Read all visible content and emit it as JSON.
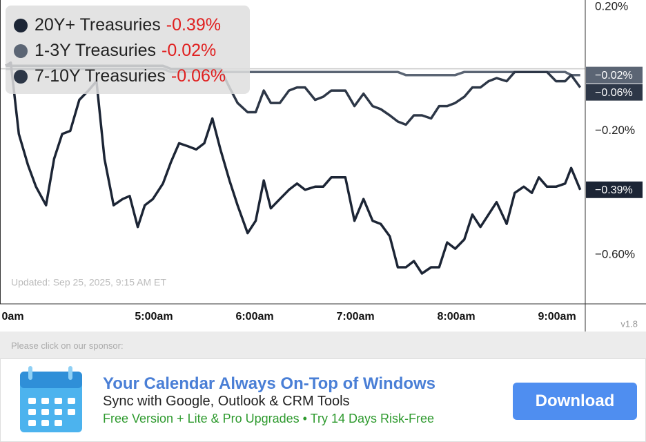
{
  "chart_data": {
    "type": "line",
    "x": [
      3.53,
      3.58,
      3.66,
      3.75,
      3.83,
      3.93,
      4.01,
      4.09,
      4.17,
      4.26,
      4.35,
      4.43,
      4.51,
      4.6,
      4.69,
      4.76,
      4.84,
      4.91,
      4.99,
      5.09,
      5.17,
      5.25,
      5.34,
      5.42,
      5.5,
      5.58,
      5.66,
      5.75,
      5.83,
      5.93,
      6.01,
      6.09,
      6.16,
      6.25,
      6.34,
      6.42,
      6.5,
      6.6,
      6.68,
      6.76,
      6.9,
      6.99,
      7.08,
      7.17,
      7.25,
      7.34,
      7.42,
      7.5,
      7.58,
      7.66,
      7.75,
      7.83,
      7.91,
      7.99,
      8.08,
      8.16,
      8.24,
      8.32,
      8.4,
      8.5,
      8.58,
      8.67,
      8.75,
      8.82,
      8.9,
      8.99,
      9.08,
      9.14,
      9.23
    ],
    "xlim": [
      3.473,
      9.28
    ],
    "xticks": [
      {
        "value": 3.6,
        "label": "0am"
      },
      {
        "value": 5,
        "label": "5:00am"
      },
      {
        "value": 6,
        "label": "6:00am"
      },
      {
        "value": 7,
        "label": "7:00am"
      },
      {
        "value": 8,
        "label": "8:00am"
      },
      {
        "value": 9,
        "label": "9:00am"
      }
    ],
    "ylim": [
      -0.758,
      0.222
    ],
    "yticks": [
      {
        "value": 0.2,
        "label": "0.20%"
      },
      {
        "value": -0.2,
        "label": "−0.20%"
      },
      {
        "value": -0.6,
        "label": "−0.60%"
      }
    ],
    "annotation": "Updated: Sep 25, 2025, 9:15 AM ET",
    "version": "v1.8",
    "series": [
      {
        "name": "20Y+ Treasuries",
        "change": "-0.39%",
        "end_label": "−0.39%",
        "color": "#1c2535",
        "label_bg": "#1c2535",
        "values": [
          0.01,
          0.02,
          -0.21,
          -0.31,
          -0.38,
          -0.44,
          -0.29,
          -0.21,
          -0.2,
          -0.1,
          -0.07,
          -0.04,
          -0.29,
          -0.44,
          -0.42,
          -0.41,
          -0.51,
          -0.44,
          -0.42,
          -0.37,
          -0.3,
          -0.24,
          -0.25,
          -0.26,
          -0.24,
          -0.16,
          -0.26,
          -0.36,
          -0.44,
          -0.53,
          -0.49,
          -0.36,
          -0.45,
          -0.42,
          -0.39,
          -0.37,
          -0.39,
          -0.38,
          -0.38,
          -0.35,
          -0.35,
          -0.49,
          -0.42,
          -0.49,
          -0.5,
          -0.54,
          -0.64,
          -0.64,
          -0.62,
          -0.66,
          -0.64,
          -0.64,
          -0.56,
          -0.58,
          -0.55,
          -0.47,
          -0.51,
          -0.47,
          -0.43,
          -0.5,
          -0.4,
          -0.38,
          -0.4,
          -0.35,
          -0.38,
          -0.38,
          -0.37,
          -0.32,
          -0.39
        ]
      },
      {
        "name": "1-3Y Treasuries",
        "change": "-0.02%",
        "end_label": "−0.02%",
        "color": "#5b6574",
        "label_bg": "#5b6574",
        "values": [
          0,
          0,
          0,
          0,
          0,
          0,
          0,
          0,
          0,
          0,
          0,
          0,
          0,
          0,
          0,
          0,
          0,
          0,
          0,
          0,
          -0.01,
          -0.01,
          -0.01,
          -0.01,
          -0.01,
          -0.01,
          -0.01,
          -0.01,
          -0.01,
          -0.01,
          -0.01,
          -0.01,
          -0.01,
          -0.01,
          -0.01,
          -0.01,
          -0.01,
          -0.01,
          -0.01,
          -0.01,
          -0.01,
          -0.01,
          -0.01,
          -0.01,
          -0.01,
          -0.01,
          -0.01,
          -0.02,
          -0.02,
          -0.02,
          -0.02,
          -0.02,
          -0.02,
          -0.02,
          -0.01,
          -0.01,
          -0.01,
          -0.01,
          -0.01,
          -0.01,
          -0.01,
          -0.01,
          -0.01,
          -0.01,
          -0.01,
          -0.01,
          -0.01,
          -0.02,
          -0.02
        ]
      },
      {
        "name": "7-10Y Treasuries",
        "change": "-0.06%",
        "end_label": "−0.06%",
        "color": "#2d3747",
        "label_bg": "#2d3747",
        "values": [
          0.01,
          0.01,
          0.01,
          0.01,
          0.01,
          0.01,
          0.01,
          0.01,
          0.01,
          0.01,
          0.01,
          0.01,
          0.01,
          0.01,
          0.01,
          0.01,
          0.01,
          0.01,
          0.01,
          0.01,
          0,
          0,
          0,
          0,
          0,
          0,
          0,
          -0.06,
          -0.11,
          -0.14,
          -0.14,
          -0.07,
          -0.11,
          -0.11,
          -0.07,
          -0.06,
          -0.06,
          -0.1,
          -0.09,
          -0.07,
          -0.07,
          -0.12,
          -0.08,
          -0.12,
          -0.13,
          -0.15,
          -0.17,
          -0.18,
          -0.15,
          -0.15,
          -0.16,
          -0.12,
          -0.12,
          -0.11,
          -0.09,
          -0.06,
          -0.06,
          -0.04,
          -0.03,
          -0.04,
          -0.01,
          -0.01,
          -0.01,
          -0.01,
          -0.01,
          -0.04,
          -0.04,
          -0.02,
          -0.06
        ]
      }
    ]
  },
  "sponsor": {
    "prompt": "Please click on our sponsor:",
    "title": "Your Calendar Always On-Top of Windows",
    "line1": "Sync with Google, Outlook & CRM Tools",
    "line2": "Free Version + Lite & Pro Upgrades • Try 14 Days Risk-Free",
    "button": "Download"
  }
}
